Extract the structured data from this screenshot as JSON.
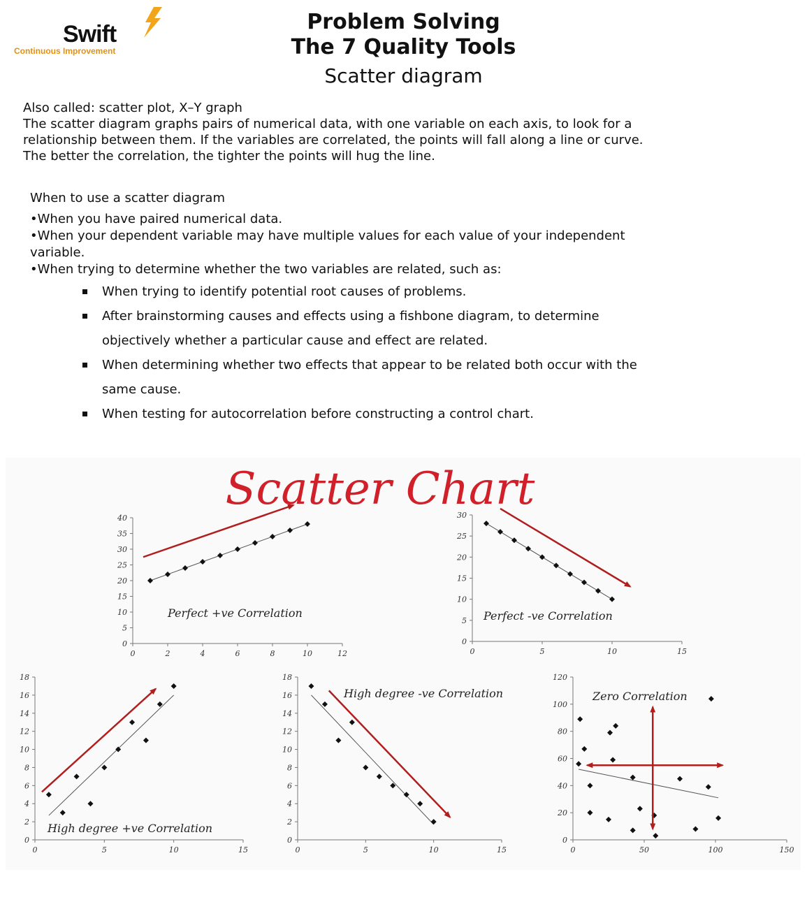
{
  "header": {
    "logo_word": "Swift",
    "logo_tag": "Continuous Improvement",
    "title_line1": "Problem Solving",
    "title_line2": "The 7 Quality Tools",
    "subtitle": "Scatter diagram"
  },
  "intro": {
    "also_called": "Also called: scatter plot, X–Y graph",
    "line1": "The scatter diagram graphs pairs of numerical data, with one variable on each axis, to look for a",
    "line2": "relationship between them. If the variables are correlated, the points will fall along a line or curve.",
    "line3": "The better the correlation, the tighter the points will hug the line."
  },
  "when": {
    "heading": "When to use a scatter diagram",
    "items": [
      "•When you have paired numerical data.",
      "•When your dependent variable may have multiple values for each value of your independent",
      "variable.",
      "•When trying to determine whether the two variables are related, such as:"
    ],
    "bullets": [
      "When trying to identify potential root causes of problems.",
      "After brainstorming causes and effects using a fishbone diagram, to determine",
      "objectively whether a particular cause and effect are related.",
      "When determining whether two effects that appear to be related both occur with the",
      "same cause.",
      "When testing for autocorrelation before constructing a control chart."
    ]
  },
  "figure_title": "Scatter Chart",
  "colors": {
    "arrow": "#b11e1e",
    "title": "#d0202a",
    "point": "#111111"
  },
  "chart_data": [
    {
      "type": "scatter",
      "title": "Perfect +ve Correlation",
      "xlim": [
        0,
        12
      ],
      "ylim": [
        0,
        40
      ],
      "xticks": [
        0,
        2,
        4,
        6,
        8,
        10,
        12
      ],
      "yticks": [
        0,
        5,
        10,
        15,
        20,
        25,
        30,
        35,
        40
      ],
      "x": [
        1,
        2,
        3,
        4,
        5,
        6,
        7,
        8,
        9,
        10
      ],
      "y": [
        20,
        22,
        24,
        26,
        28,
        30,
        32,
        34,
        36,
        38
      ],
      "trend": [
        [
          1,
          20
        ],
        [
          10,
          38
        ]
      ],
      "arrow": [
        [
          0.6,
          27.5
        ],
        [
          9.2,
          44
        ]
      ]
    },
    {
      "type": "scatter",
      "title": "Perfect -ve Correlation",
      "xlim": [
        0,
        15
      ],
      "ylim": [
        0,
        30
      ],
      "xticks": [
        0,
        5,
        10,
        15
      ],
      "yticks": [
        0,
        5,
        10,
        15,
        20,
        25,
        30
      ],
      "x": [
        1,
        2,
        3,
        4,
        5,
        6,
        7,
        8,
        9,
        10
      ],
      "y": [
        28,
        26,
        24,
        22,
        20,
        18,
        16,
        14,
        12,
        10
      ],
      "trend": [
        [
          1,
          28
        ],
        [
          10,
          10
        ]
      ],
      "arrow": [
        [
          2,
          31.5
        ],
        [
          11.3,
          13
        ]
      ]
    },
    {
      "type": "scatter",
      "title": "High degree +ve Correlation",
      "xlim": [
        0,
        15
      ],
      "ylim": [
        0,
        18
      ],
      "xticks": [
        0,
        5,
        10,
        15
      ],
      "yticks": [
        0,
        2,
        4,
        6,
        8,
        10,
        12,
        14,
        16,
        18
      ],
      "x": [
        1,
        2,
        3,
        4,
        5,
        6,
        7,
        8,
        9,
        10
      ],
      "y": [
        5,
        3,
        7,
        4,
        8,
        10,
        13,
        11,
        15,
        17
      ],
      "trend": [
        [
          1,
          2.7
        ],
        [
          10,
          16
        ]
      ],
      "arrow": [
        [
          0.5,
          5.3
        ],
        [
          8.7,
          16.7
        ]
      ]
    },
    {
      "type": "scatter",
      "title": "High degree -ve Correlation",
      "xlim": [
        0,
        15
      ],
      "ylim": [
        0,
        18
      ],
      "xticks": [
        0,
        5,
        10,
        15
      ],
      "yticks": [
        0,
        2,
        4,
        6,
        8,
        10,
        12,
        14,
        16,
        18
      ],
      "x": [
        1,
        2,
        3,
        4,
        5,
        6,
        7,
        8,
        9,
        10
      ],
      "y": [
        17,
        15,
        11,
        13,
        8,
        7,
        6,
        5,
        4,
        2
      ],
      "trend": [
        [
          1,
          16
        ],
        [
          10,
          1.7
        ]
      ],
      "arrow": [
        [
          2.3,
          16.5
        ],
        [
          11.2,
          2.5
        ]
      ]
    },
    {
      "type": "scatter",
      "title": "Zero Correlation",
      "xlim": [
        0,
        150
      ],
      "ylim": [
        0,
        120
      ],
      "xticks": [
        0,
        50,
        100,
        150
      ],
      "yticks": [
        0,
        20,
        40,
        60,
        80,
        100,
        120
      ],
      "x": [
        4,
        5,
        8,
        12,
        12,
        25,
        26,
        28,
        30,
        42,
        42,
        47,
        57,
        58,
        75,
        86,
        95,
        97,
        102
      ],
      "y": [
        56,
        89,
        67,
        20,
        40,
        15,
        79,
        59,
        84,
        7,
        46,
        23,
        18,
        3,
        45,
        8,
        39,
        104,
        16
      ],
      "trend": [
        [
          4,
          52
        ],
        [
          102,
          31
        ]
      ],
      "arrows": [
        [
          [
            56,
            40
          ],
          [
            56,
            98
          ]
        ],
        [
          [
            56,
            40
          ],
          [
            56,
            8
          ]
        ],
        [
          [
            56,
            55
          ],
          [
            10,
            55
          ]
        ],
        [
          [
            56,
            55
          ],
          [
            105,
            55
          ]
        ]
      ]
    }
  ]
}
